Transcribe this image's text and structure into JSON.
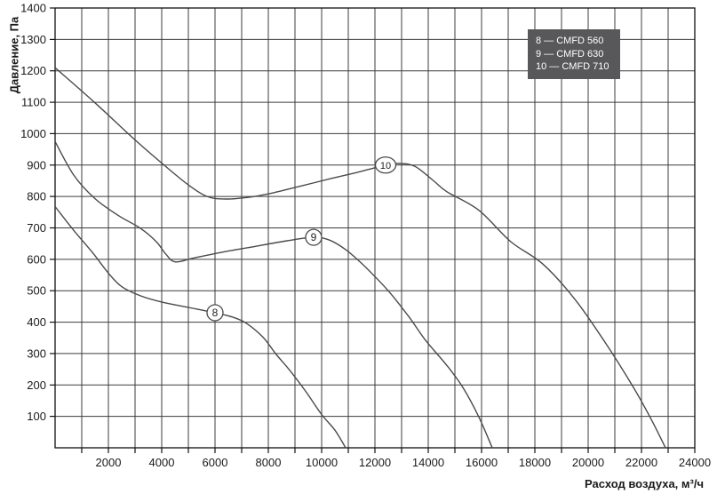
{
  "chart_data": {
    "type": "line",
    "title": "",
    "xlabel": "Расход воздуха, м³/ч",
    "ylabel": "Давление, Па",
    "xlim": [
      0,
      24000
    ],
    "ylim": [
      0,
      1400
    ],
    "x_ticks": [
      2000,
      4000,
      6000,
      8000,
      10000,
      12000,
      14000,
      16000,
      18000,
      20000,
      22000,
      24000
    ],
    "y_ticks": [
      100,
      200,
      300,
      400,
      500,
      600,
      700,
      800,
      900,
      1000,
      1100,
      1200,
      1300,
      1400
    ],
    "grid": {
      "x_step": 1000,
      "y_step": 100,
      "visible": true
    },
    "legend": {
      "position": "top-right",
      "entries": [
        "8 — CMFD 560",
        "9 — CMFD 630",
        "10 — CMFD 710"
      ]
    },
    "series": [
      {
        "name": "CMFD 560",
        "marker_label": "8",
        "marker_at": [
          6000,
          430
        ],
        "points": [
          [
            0,
            768
          ],
          [
            700,
            692
          ],
          [
            1400,
            622
          ],
          [
            2000,
            556
          ],
          [
            2500,
            513
          ],
          [
            3200,
            484
          ],
          [
            4000,
            464
          ],
          [
            5000,
            447
          ],
          [
            6000,
            430
          ],
          [
            6700,
            415
          ],
          [
            7200,
            395
          ],
          [
            7800,
            352
          ],
          [
            8300,
            297
          ],
          [
            8800,
            247
          ],
          [
            9400,
            180
          ],
          [
            10000,
            106
          ],
          [
            10500,
            56
          ],
          [
            10900,
            0
          ]
        ]
      },
      {
        "name": "CMFD 630",
        "marker_label": "9",
        "marker_at": [
          9700,
          670
        ],
        "points": [
          [
            0,
            975
          ],
          [
            700,
            868
          ],
          [
            1500,
            793
          ],
          [
            2400,
            738
          ],
          [
            3200,
            699
          ],
          [
            3800,
            656
          ],
          [
            4150,
            617
          ],
          [
            4500,
            592
          ],
          [
            5200,
            604
          ],
          [
            6300,
            623
          ],
          [
            7500,
            641
          ],
          [
            8700,
            659
          ],
          [
            9700,
            670
          ],
          [
            10300,
            661
          ],
          [
            10900,
            631
          ],
          [
            11450,
            591
          ],
          [
            12000,
            545
          ],
          [
            12600,
            490
          ],
          [
            13300,
            414
          ],
          [
            13900,
            342
          ],
          [
            14700,
            262
          ],
          [
            15300,
            192
          ],
          [
            15900,
            98
          ],
          [
            16400,
            0
          ]
        ]
      },
      {
        "name": "CMFD 710",
        "marker_label": "10",
        "marker_at": [
          12400,
          900
        ],
        "points": [
          [
            0,
            1210
          ],
          [
            1500,
            1098
          ],
          [
            3000,
            980
          ],
          [
            4200,
            892
          ],
          [
            5000,
            837
          ],
          [
            5700,
            800
          ],
          [
            6400,
            792
          ],
          [
            7300,
            798
          ],
          [
            8200,
            812
          ],
          [
            9300,
            835
          ],
          [
            10400,
            858
          ],
          [
            11300,
            876
          ],
          [
            12400,
            900
          ],
          [
            12900,
            905
          ],
          [
            13500,
            896
          ],
          [
            14200,
            850
          ],
          [
            14700,
            815
          ],
          [
            15900,
            756
          ],
          [
            17100,
            656
          ],
          [
            18300,
            585
          ],
          [
            19500,
            473
          ],
          [
            20600,
            340
          ],
          [
            21700,
            192
          ],
          [
            22400,
            85
          ],
          [
            22900,
            0
          ]
        ]
      }
    ],
    "colors": {
      "curve": "#4a4a4a",
      "grid": "#3c3c3c",
      "axis": "#111111",
      "tick_text": "#1a1a1a",
      "legend_bg": "#58585a",
      "legend_text": "#ffffff",
      "marker_fill": "#ffffff"
    }
  }
}
